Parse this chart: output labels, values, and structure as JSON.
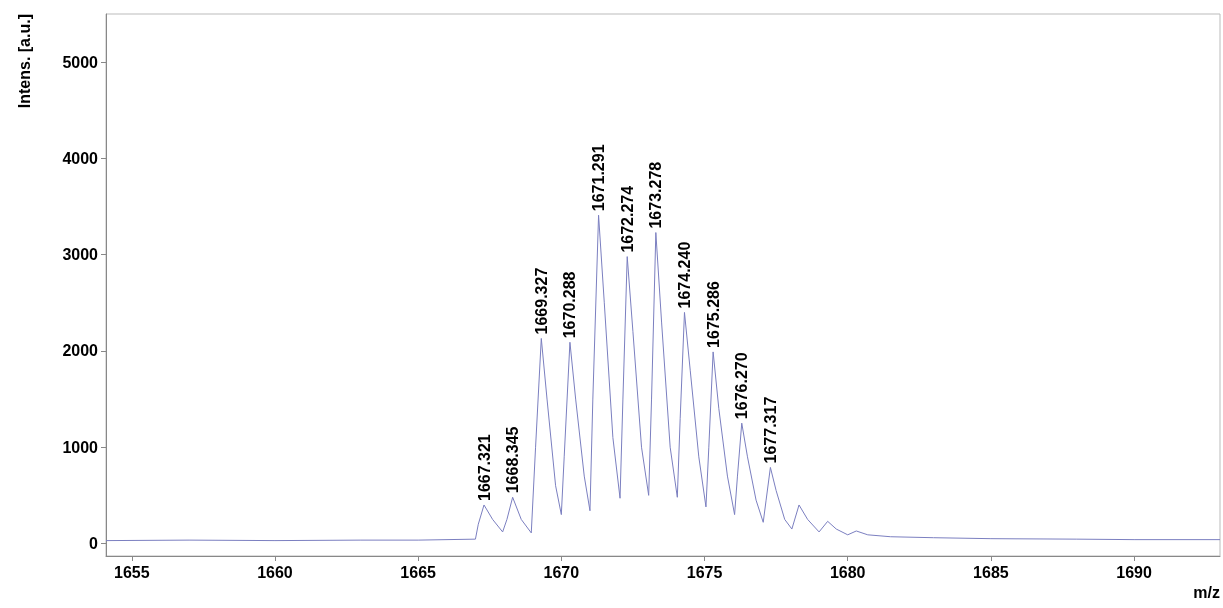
{
  "chart_data": {
    "type": "line",
    "xlabel": "m/z",
    "ylabel": "Intens. [a.u.]",
    "xlim": [
      1654.1,
      1693.0
    ],
    "xticks": [
      1655,
      1660,
      1665,
      1670,
      1675,
      1680,
      1685,
      1690
    ],
    "ylim": [
      -130,
      5500
    ],
    "yticks": [
      0,
      1000,
      2000,
      3000,
      4000,
      5000
    ],
    "grid": false,
    "marker": "none",
    "line_style": "solid",
    "series": [
      {
        "color": "#7b7fc0",
        "x": [
          1654.1,
          1657,
          1660,
          1663,
          1665,
          1667.0,
          1667.1,
          1667.3,
          1667.6,
          1667.95,
          1668.1,
          1668.3,
          1668.6,
          1668.95,
          1669.1,
          1669.3,
          1669.5,
          1669.8,
          1670.0,
          1670.1,
          1670.3,
          1670.5,
          1670.8,
          1671.0,
          1671.1,
          1671.3,
          1671.5,
          1671.8,
          1672.05,
          1672.15,
          1672.3,
          1672.5,
          1672.8,
          1673.05,
          1673.15,
          1673.3,
          1673.5,
          1673.8,
          1674.05,
          1674.15,
          1674.3,
          1674.5,
          1674.8,
          1675.05,
          1675.15,
          1675.3,
          1675.5,
          1675.8,
          1676.05,
          1676.15,
          1676.3,
          1676.5,
          1676.8,
          1677.05,
          1677.15,
          1677.3,
          1677.5,
          1677.8,
          1678.05,
          1678.3,
          1678.6,
          1679.0,
          1679.3,
          1679.6,
          1680.0,
          1680.3,
          1680.7,
          1681.5,
          1683,
          1685,
          1688,
          1690,
          1693.0
        ],
        "values": [
          30,
          35,
          30,
          35,
          35,
          45,
          200,
          400,
          250,
          120,
          250,
          480,
          250,
          110,
          1000,
          2130,
          1500,
          600,
          300,
          900,
          2090,
          1500,
          700,
          340,
          1500,
          3410,
          2500,
          1100,
          470,
          1500,
          2980,
          2200,
          1000,
          500,
          1500,
          3230,
          2300,
          1000,
          480,
          1300,
          2400,
          1800,
          900,
          380,
          1000,
          1990,
          1400,
          700,
          300,
          700,
          1250,
          900,
          450,
          220,
          450,
          790,
          550,
          250,
          150,
          400,
          250,
          120,
          230,
          150,
          90,
          130,
          90,
          70,
          60,
          50,
          45,
          40,
          40
        ]
      }
    ],
    "annotations": [
      {
        "text": "1667.321",
        "x": 1667.3,
        "y": 400
      },
      {
        "text": "1668.345",
        "x": 1668.3,
        "y": 480
      },
      {
        "text": "1669.327",
        "x": 1669.3,
        "y": 2130
      },
      {
        "text": "1670.288",
        "x": 1670.3,
        "y": 2090
      },
      {
        "text": "1671.291",
        "x": 1671.3,
        "y": 3410
      },
      {
        "text": "1672.274",
        "x": 1672.3,
        "y": 2980
      },
      {
        "text": "1673.278",
        "x": 1673.3,
        "y": 3230
      },
      {
        "text": "1674.240",
        "x": 1674.3,
        "y": 2400
      },
      {
        "text": "1675.286",
        "x": 1675.3,
        "y": 1990
      },
      {
        "text": "1676.270",
        "x": 1676.3,
        "y": 1250
      },
      {
        "text": "1677.317",
        "x": 1677.3,
        "y": 790
      }
    ]
  }
}
